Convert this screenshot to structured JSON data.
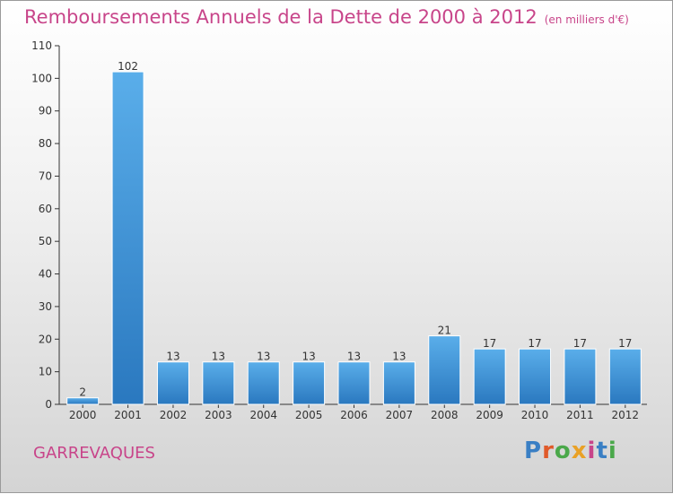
{
  "title": "Remboursements Annuels de la Dette de 2000 à 2012",
  "subtitle": "(en milliers d'€)",
  "commune": "GARREVAQUES",
  "logo": {
    "text": "Proxiti",
    "colors": [
      "#3a7fc4",
      "#e05a2a",
      "#4aa84a",
      "#e9a126",
      "#c8458a",
      "#3a7fc4",
      "#4aa84a"
    ]
  },
  "colors": {
    "title": "#c8458a",
    "bar_top": "#5aaeea",
    "bar_bottom": "#2a78bf"
  },
  "chart_data": {
    "type": "bar",
    "title": "Remboursements Annuels de la Dette de 2000 à 2012",
    "categories": [
      "2000",
      "2001",
      "2002",
      "2003",
      "2004",
      "2005",
      "2006",
      "2007",
      "2008",
      "2009",
      "2010",
      "2011",
      "2012"
    ],
    "values": [
      2,
      102,
      13,
      13,
      13,
      13,
      13,
      13,
      21,
      17,
      17,
      17,
      17
    ],
    "data_labels": [
      "2",
      "102",
      "13",
      "13",
      "13",
      "13",
      "13",
      "13",
      "21",
      "17",
      "17",
      "17",
      "17"
    ],
    "ylim": [
      0,
      110
    ],
    "yticks": [
      0,
      10,
      20,
      30,
      40,
      50,
      60,
      70,
      80,
      90,
      100,
      110
    ],
    "grid": false,
    "legend": "none"
  }
}
